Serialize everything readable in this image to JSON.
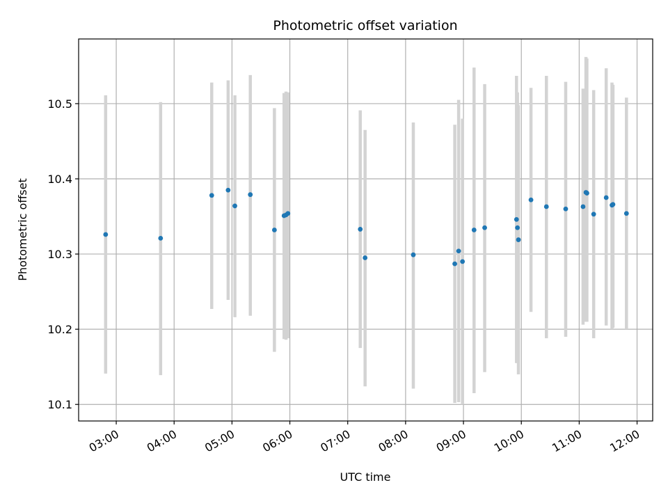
{
  "chart_data": {
    "type": "scatter",
    "title": "Photometric offset variation",
    "xlabel": "UTC time",
    "ylabel": "Photometric offset",
    "xlim_hours": [
      2.35,
      12.27
    ],
    "ylim": [
      10.078,
      10.586
    ],
    "grid": true,
    "x_ticks": [
      {
        "h": 3,
        "label": "03:00"
      },
      {
        "h": 4,
        "label": "04:00"
      },
      {
        "h": 5,
        "label": "05:00"
      },
      {
        "h": 6,
        "label": "06:00"
      },
      {
        "h": 7,
        "label": "07:00"
      },
      {
        "h": 8,
        "label": "08:00"
      },
      {
        "h": 9,
        "label": "09:00"
      },
      {
        "h": 10,
        "label": "10:00"
      },
      {
        "h": 11,
        "label": "11:00"
      },
      {
        "h": 12,
        "label": "12:00"
      }
    ],
    "y_ticks": [
      {
        "v": 10.1,
        "label": "10.1"
      },
      {
        "v": 10.2,
        "label": "10.2"
      },
      {
        "v": 10.3,
        "label": "10.3"
      },
      {
        "v": 10.4,
        "label": "10.4"
      },
      {
        "v": 10.5,
        "label": "10.5"
      }
    ],
    "colors": {
      "points": "#1f77b4",
      "error_bars": "#d3d3d3",
      "grid": "#b0b0b0"
    },
    "points": [
      {
        "x": "02:49",
        "y": 10.326,
        "lo": 10.141,
        "hi": 10.511
      },
      {
        "x": "03:46",
        "y": 10.321,
        "lo": 10.139,
        "hi": 10.502
      },
      {
        "x": "04:39",
        "y": 10.378,
        "lo": 10.227,
        "hi": 10.528
      },
      {
        "x": "04:56",
        "y": 10.385,
        "lo": 10.239,
        "hi": 10.531
      },
      {
        "x": "05:03",
        "y": 10.364,
        "lo": 10.216,
        "hi": 10.511
      },
      {
        "x": "05:19",
        "y": 10.379,
        "lo": 10.218,
        "hi": 10.538
      },
      {
        "x": "05:44",
        "y": 10.332,
        "lo": 10.17,
        "hi": 10.494
      },
      {
        "x": "05:54",
        "y": 10.351,
        "lo": 10.187,
        "hi": 10.514
      },
      {
        "x": "05:56",
        "y": 10.352,
        "lo": 10.186,
        "hi": 10.516
      },
      {
        "x": "05:58",
        "y": 10.354,
        "lo": 10.188,
        "hi": 10.515
      },
      {
        "x": "07:13",
        "y": 10.333,
        "lo": 10.175,
        "hi": 10.491
      },
      {
        "x": "07:18",
        "y": 10.295,
        "lo": 10.124,
        "hi": 10.465
      },
      {
        "x": "08:08",
        "y": 10.299,
        "lo": 10.121,
        "hi": 10.475
      },
      {
        "x": "08:51",
        "y": 10.287,
        "lo": 10.102,
        "hi": 10.472
      },
      {
        "x": "08:55",
        "y": 10.304,
        "lo": 10.103,
        "hi": 10.505
      },
      {
        "x": "08:59",
        "y": 10.29,
        "lo": 10.1,
        "hi": 10.48
      },
      {
        "x": "09:11",
        "y": 10.332,
        "lo": 10.115,
        "hi": 10.548
      },
      {
        "x": "09:22",
        "y": 10.335,
        "lo": 10.143,
        "hi": 10.526
      },
      {
        "x": "09:55",
        "y": 10.346,
        "lo": 10.155,
        "hi": 10.537
      },
      {
        "x": "09:56",
        "y": 10.335,
        "lo": 10.155,
        "hi": 10.515
      },
      {
        "x": "09:57",
        "y": 10.319,
        "lo": 10.14,
        "hi": 10.498
      },
      {
        "x": "10:10",
        "y": 10.372,
        "lo": 10.223,
        "hi": 10.521
      },
      {
        "x": "10:26",
        "y": 10.363,
        "lo": 10.188,
        "hi": 10.537
      },
      {
        "x": "10:46",
        "y": 10.36,
        "lo": 10.19,
        "hi": 10.529
      },
      {
        "x": "11:04",
        "y": 10.363,
        "lo": 10.206,
        "hi": 10.52
      },
      {
        "x": "11:07",
        "y": 10.382,
        "lo": 10.21,
        "hi": 10.562
      },
      {
        "x": "11:08",
        "y": 10.381,
        "lo": 10.21,
        "hi": 10.56
      },
      {
        "x": "11:15",
        "y": 10.353,
        "lo": 10.188,
        "hi": 10.518
      },
      {
        "x": "11:28",
        "y": 10.375,
        "lo": 10.205,
        "hi": 10.547
      },
      {
        "x": "11:34",
        "y": 10.365,
        "lo": 10.2,
        "hi": 10.528
      },
      {
        "x": "11:35",
        "y": 10.366,
        "lo": 10.202,
        "hi": 10.525
      },
      {
        "x": "11:49",
        "y": 10.354,
        "lo": 10.2,
        "hi": 10.508
      }
    ]
  }
}
